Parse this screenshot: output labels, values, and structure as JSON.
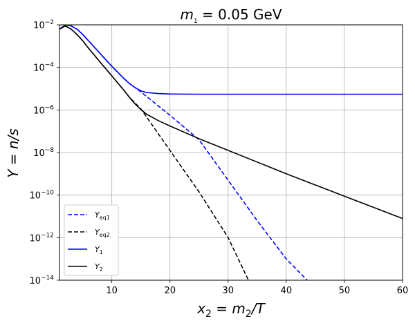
{
  "chart_data": {
    "type": "line",
    "title": {
      "var": "m",
      "sub": "1",
      "rest": " = 0.05 GeV"
    },
    "xlabel": {
      "a": "x",
      "a_sub": "2",
      "mid": " = m",
      "b_sub": "2",
      "end": "/T"
    },
    "ylabel": "Y = n/s",
    "xlim": [
      1,
      60
    ],
    "ylim_log10": [
      -14,
      -2
    ],
    "yscale": "log",
    "grid": true,
    "legend_position": "lower-left",
    "x_ticks": [
      10,
      20,
      30,
      40,
      50,
      60
    ],
    "x_tick_labels": [
      "10",
      "20",
      "30",
      "40",
      "50",
      "60"
    ],
    "y_ticks_log10": [
      -14,
      -12,
      -10,
      -8,
      -6,
      -4,
      -2
    ],
    "y_tick_labels": [
      {
        "base": "10",
        "exp": "−14"
      },
      {
        "base": "10",
        "exp": "−12"
      },
      {
        "base": "10",
        "exp": "−10"
      },
      {
        "base": "10",
        "exp": "−8"
      },
      {
        "base": "10",
        "exp": "−6"
      },
      {
        "base": "10",
        "exp": "−4"
      },
      {
        "base": "10",
        "exp": "−2"
      }
    ],
    "series": [
      {
        "name": "Yeq1",
        "label": "Y",
        "label_sub": "eq1",
        "color": "#0000ff",
        "style": "dashed",
        "x": [
          1,
          2,
          3,
          4,
          5,
          6,
          8,
          10,
          12,
          13,
          15,
          20,
          25,
          30,
          35,
          40,
          43.6
        ],
        "y_log10": [
          -2.2,
          -2.0,
          -2.05,
          -2.2,
          -2.45,
          -2.75,
          -3.35,
          -3.95,
          -4.5,
          -4.75,
          -5.15,
          -6.25,
          -7.4,
          -9.3,
          -11.2,
          -13.0,
          -14.0
        ]
      },
      {
        "name": "Yeq2",
        "label": "Y",
        "label_sub": "eq2",
        "color": "#000000",
        "style": "dashed",
        "x": [
          1,
          2,
          3,
          4,
          5,
          6,
          8,
          10,
          12,
          13,
          15,
          20,
          25,
          30,
          33.5
        ],
        "y_log10": [
          -2.2,
          -2.05,
          -2.2,
          -2.45,
          -2.75,
          -3.1,
          -3.75,
          -4.4,
          -5.05,
          -5.4,
          -5.95,
          -7.9,
          -9.85,
          -12.0,
          -14.0
        ]
      },
      {
        "name": "Y1",
        "label": "Y",
        "label_sub": "1",
        "color": "#0000ff",
        "style": "solid",
        "x": [
          1,
          2,
          3,
          4,
          5,
          6,
          8,
          10,
          12,
          13,
          14,
          15,
          16,
          18,
          20,
          25,
          30,
          40,
          50,
          60
        ],
        "y_log10": [
          -2.2,
          -2.0,
          -2.05,
          -2.2,
          -2.45,
          -2.75,
          -3.35,
          -3.95,
          -4.5,
          -4.75,
          -4.95,
          -5.1,
          -5.18,
          -5.23,
          -5.25,
          -5.26,
          -5.26,
          -5.26,
          -5.26,
          -5.26
        ]
      },
      {
        "name": "Y2",
        "label": "Y",
        "label_sub": "2",
        "color": "#000000",
        "style": "solid",
        "x": [
          1,
          2,
          3,
          4,
          5,
          6,
          8,
          10,
          12,
          13,
          14,
          15,
          16,
          18,
          20,
          25,
          30,
          40,
          50,
          60
        ],
        "y_log10": [
          -2.2,
          -2.05,
          -2.2,
          -2.45,
          -2.75,
          -3.1,
          -3.75,
          -4.4,
          -5.05,
          -5.4,
          -5.72,
          -5.98,
          -6.2,
          -6.5,
          -6.75,
          -7.35,
          -7.9,
          -9.0,
          -10.05,
          -11.1
        ]
      }
    ]
  }
}
